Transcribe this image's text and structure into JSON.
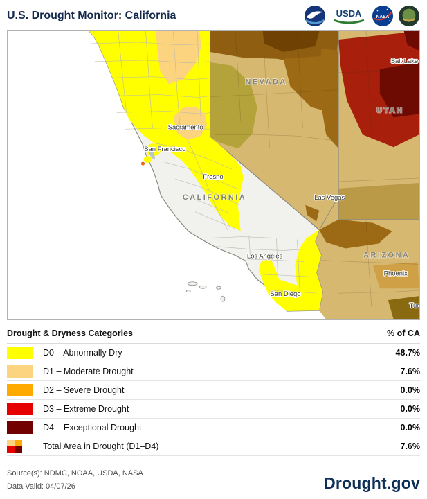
{
  "header": {
    "title": "U.S. Drought Monitor: California",
    "usda_label": "USDA",
    "nasa_label": "NASA"
  },
  "map": {
    "states": {
      "nevada": "NEVADA",
      "utah": "UTAH",
      "california": "CALIFORNIA",
      "arizona": "ARIZONA"
    },
    "cities": {
      "salt_lake": "Salt Lake",
      "sacramento": "Sacramento",
      "san_francisco": "San Francisco",
      "fresno": "Fresno",
      "las_vegas": "Las Vegas",
      "los_angeles": "Los Angeles",
      "san_diego": "San Diego",
      "phoenix": "Phoenix",
      "tucson": "Tuc"
    }
  },
  "legend": {
    "title": "Drought & Dryness Categories",
    "value_header": "% of CA",
    "multi_colors": [
      "#FCD37F",
      "#FFAA00",
      "#E60000",
      "#730000"
    ],
    "rows": [
      {
        "label": "D0 – Abnormally Dry",
        "value": "48.7%",
        "color": "#FFFF00"
      },
      {
        "label": "D1 – Moderate Drought",
        "value": "7.6%",
        "color": "#FCD37F"
      },
      {
        "label": "D2 – Severe Drought",
        "value": "0.0%",
        "color": "#FFAA00"
      },
      {
        "label": "D3 – Extreme Drought",
        "value": "0.0%",
        "color": "#E60000"
      },
      {
        "label": "D4 – Exceptional Drought",
        "value": "0.0%",
        "color": "#730000"
      },
      {
        "label": "Total Area in Drought (D1–D4)",
        "value": "7.6%",
        "color": "multi"
      }
    ]
  },
  "footer": {
    "source": "Source(s): NDMC, NOAA, USDA, NASA",
    "data_valid": "Data Valid: 04/07/26",
    "brand": "Drought.gov"
  }
}
